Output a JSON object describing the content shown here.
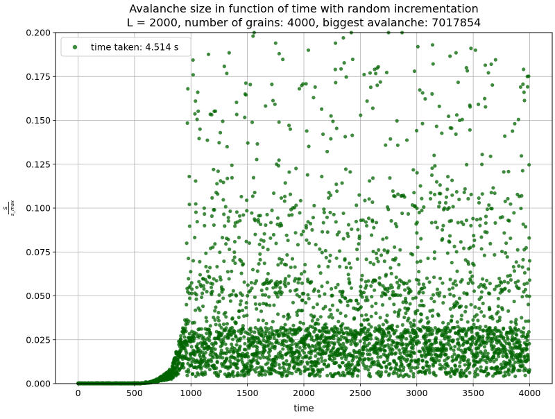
{
  "chart_data": {
    "type": "scatter",
    "title_line1": "Avalanche size in function of time with random incrementation",
    "title_line2": "L = 2000, number of grains: 4000, biggest avalanche: 7017854",
    "xlabel": "time",
    "ylabel": "s / s_max",
    "ylabel_numerator": "s",
    "ylabel_denominator": "s_max",
    "xlim": [
      -200,
      4200
    ],
    "ylim": [
      0,
      0.2
    ],
    "xticks": [
      0,
      500,
      1000,
      1500,
      2000,
      2500,
      3000,
      3500,
      4000
    ],
    "xtick_labels": [
      "0",
      "500",
      "1000",
      "1500",
      "2000",
      "2500",
      "3000",
      "3500",
      "4000"
    ],
    "yticks": [
      0,
      0.025,
      0.05,
      0.075,
      0.1,
      0.125,
      0.15,
      0.175,
      0.2
    ],
    "ytick_labels": [
      "0.000",
      "0.025",
      "0.050",
      "0.075",
      "0.100",
      "0.125",
      "0.150",
      "0.175",
      "0.200"
    ],
    "grid": true,
    "legend_position": "top-left",
    "series": [
      {
        "name": "time taken: 4.514 s",
        "color": "#006400",
        "opacity": 0.75,
        "marker": "circle",
        "x_range": [
          0,
          4000
        ],
        "n_points": 4000,
        "points": [
          [
            100,
            0.0
          ],
          [
            300,
            0.0
          ],
          [
            500,
            0.0005
          ],
          [
            600,
            0.001
          ],
          [
            700,
            0.002
          ],
          [
            800,
            0.004
          ],
          [
            850,
            0.008
          ],
          [
            900,
            0.015
          ],
          [
            920,
            0.022
          ],
          [
            940,
            0.03
          ],
          [
            960,
            0.045
          ],
          [
            985,
            0.118
          ],
          [
            1020,
            0.07
          ],
          [
            1040,
            0.161
          ],
          [
            1060,
            0.166
          ],
          [
            1080,
            0.145
          ],
          [
            1120,
            0.09
          ],
          [
            1200,
            0.122
          ],
          [
            1260,
            0.143
          ],
          [
            1320,
            0.135
          ],
          [
            1480,
            0.165
          ],
          [
            1550,
            0.198
          ],
          [
            1560,
            0.2
          ],
          [
            1750,
            0.194
          ],
          [
            1780,
            0.149
          ],
          [
            1880,
            0.145
          ],
          [
            1960,
            0.168
          ],
          [
            2040,
            0.19
          ],
          [
            2100,
            0.169
          ],
          [
            2280,
            0.194
          ],
          [
            2350,
            0.197
          ],
          [
            2420,
            0.2
          ],
          [
            2560,
            0.161
          ],
          [
            2650,
            0.17
          ],
          [
            2750,
            0.2
          ],
          [
            2870,
            0.2
          ],
          [
            2980,
            0.178
          ],
          [
            3010,
            0.192
          ],
          [
            3140,
            0.193
          ],
          [
            3200,
            0.158
          ],
          [
            3380,
            0.15
          ],
          [
            3440,
            0.18
          ],
          [
            3480,
            0.191
          ],
          [
            3520,
            0.19
          ],
          [
            3660,
            0.182
          ],
          [
            3780,
            0.141
          ],
          [
            3920,
            0.169
          ],
          [
            3950,
            0.166
          ],
          [
            3980,
            0.175
          ],
          [
            4000,
            0.07
          ]
        ]
      }
    ]
  }
}
